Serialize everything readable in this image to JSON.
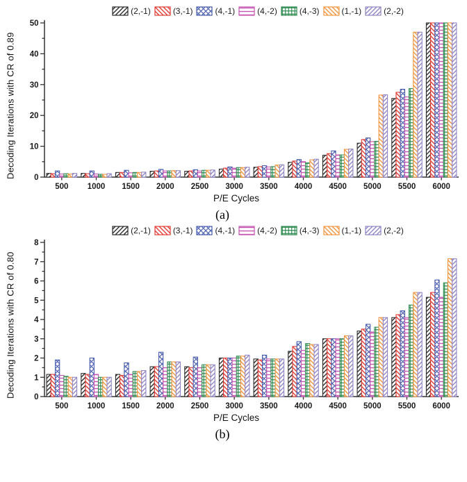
{
  "page": {
    "background": "#ffffff"
  },
  "chart_data": [
    {
      "type": "bar",
      "caption": "(a)",
      "xlabel": "P/E Cycles",
      "ylabel": "Decoding Iterations with CR of 0.89",
      "categories": [
        "500",
        "1000",
        "1500",
        "2000",
        "2500",
        "3000",
        "3500",
        "4000",
        "4500",
        "5000",
        "5500",
        "6000"
      ],
      "ylim": [
        0,
        50
      ],
      "ytick_step": 10,
      "yminor_step": 5,
      "grid": false,
      "legend_position": "top",
      "axis_color": "#333333",
      "tick_text_color": "#1a1a1a",
      "series": [
        {
          "name": "(2,-1)",
          "color": "#2b2b2b",
          "pattern": "diag-forward",
          "values": [
            1.2,
            1.2,
            1.5,
            1.9,
            1.9,
            2.6,
            3.2,
            4.8,
            7.1,
            11.0,
            25.5,
            50
          ]
        },
        {
          "name": "(3,-1)",
          "color": "#e23b33",
          "pattern": "diag-back",
          "values": [
            1.1,
            1.1,
            1.5,
            2.0,
            2.0,
            2.9,
            3.4,
            5.2,
            7.6,
            12.2,
            27.5,
            50
          ]
        },
        {
          "name": "(4,-1)",
          "color": "#4a5fae",
          "pattern": "cross-diag",
          "values": [
            2.0,
            2.0,
            2.2,
            2.5,
            2.4,
            3.3,
            3.7,
            5.7,
            8.5,
            12.7,
            28.5,
            50
          ]
        },
        {
          "name": "(4,-2)",
          "color": "#c653b0",
          "pattern": "horizontal",
          "values": [
            1.0,
            1.0,
            1.4,
            2.0,
            2.0,
            2.9,
            3.3,
            5.0,
            7.2,
            11.5,
            26.0,
            50
          ]
        },
        {
          "name": "(4,-3)",
          "color": "#2e8b50",
          "pattern": "grid",
          "values": [
            1.1,
            0.9,
            1.5,
            2.0,
            2.2,
            3.1,
            3.4,
            4.6,
            7.2,
            11.6,
            28.7,
            50
          ]
        },
        {
          "name": "(1,-1)",
          "color": "#f2953e",
          "pattern": "diag-back",
          "values": [
            1.0,
            0.9,
            1.5,
            2.1,
            2.2,
            3.1,
            3.9,
            5.6,
            9.0,
            26.6,
            47.0,
            50
          ]
        },
        {
          "name": "(2,-2)",
          "color": "#9186c5",
          "pattern": "diag-forward",
          "values": [
            1.2,
            1.1,
            1.6,
            2.1,
            2.3,
            3.2,
            4.0,
            5.8,
            9.1,
            26.7,
            47.0,
            50
          ]
        }
      ]
    },
    {
      "type": "bar",
      "caption": "(b)",
      "xlabel": "P/E Cycles",
      "ylabel": "Decoding Iterations with CR of 0.80",
      "categories": [
        "500",
        "1000",
        "1500",
        "2000",
        "2500",
        "3000",
        "3500",
        "4000",
        "4500",
        "5000",
        "5500",
        "6000"
      ],
      "ylim": [
        0,
        8
      ],
      "ytick_step": 1,
      "yminor_step": 0.5,
      "grid": false,
      "legend_position": "top",
      "axis_color": "#333333",
      "tick_text_color": "#1a1a1a",
      "series": [
        {
          "name": "(2,-1)",
          "color": "#2b2b2b",
          "pattern": "diag-forward",
          "values": [
            1.15,
            1.2,
            1.15,
            1.55,
            1.55,
            2.0,
            1.95,
            2.35,
            3.0,
            3.4,
            4.1,
            5.15
          ]
        },
        {
          "name": "(3,-1)",
          "color": "#e23b33",
          "pattern": "diag-back",
          "values": [
            1.15,
            1.15,
            1.1,
            1.55,
            1.5,
            2.0,
            1.9,
            2.6,
            3.0,
            3.5,
            4.25,
            5.4
          ]
        },
        {
          "name": "(4,-1)",
          "color": "#4a5fae",
          "pattern": "cross-diag",
          "values": [
            1.9,
            2.0,
            1.75,
            2.3,
            2.05,
            2.0,
            2.15,
            2.85,
            3.0,
            3.75,
            4.45,
            6.05
          ]
        },
        {
          "name": "(4,-2)",
          "color": "#c653b0",
          "pattern": "horizontal",
          "values": [
            1.1,
            1.15,
            1.15,
            1.5,
            1.5,
            2.0,
            1.95,
            2.4,
            3.0,
            3.35,
            4.1,
            5.15
          ]
        },
        {
          "name": "(4,-3)",
          "color": "#2e8b50",
          "pattern": "grid",
          "values": [
            1.05,
            1.0,
            1.3,
            1.8,
            1.65,
            2.1,
            1.95,
            2.75,
            3.0,
            3.6,
            4.75,
            5.9
          ]
        },
        {
          "name": "(1,-1)",
          "color": "#f2953e",
          "pattern": "diag-back",
          "values": [
            1.0,
            1.0,
            1.3,
            1.8,
            1.65,
            2.1,
            1.95,
            2.7,
            3.15,
            4.1,
            5.4,
            7.15
          ]
        },
        {
          "name": "(2,-2)",
          "color": "#9186c5",
          "pattern": "diag-forward",
          "values": [
            1.0,
            1.0,
            1.35,
            1.8,
            1.65,
            2.15,
            1.95,
            2.7,
            3.15,
            4.1,
            5.4,
            7.15
          ]
        }
      ]
    }
  ]
}
